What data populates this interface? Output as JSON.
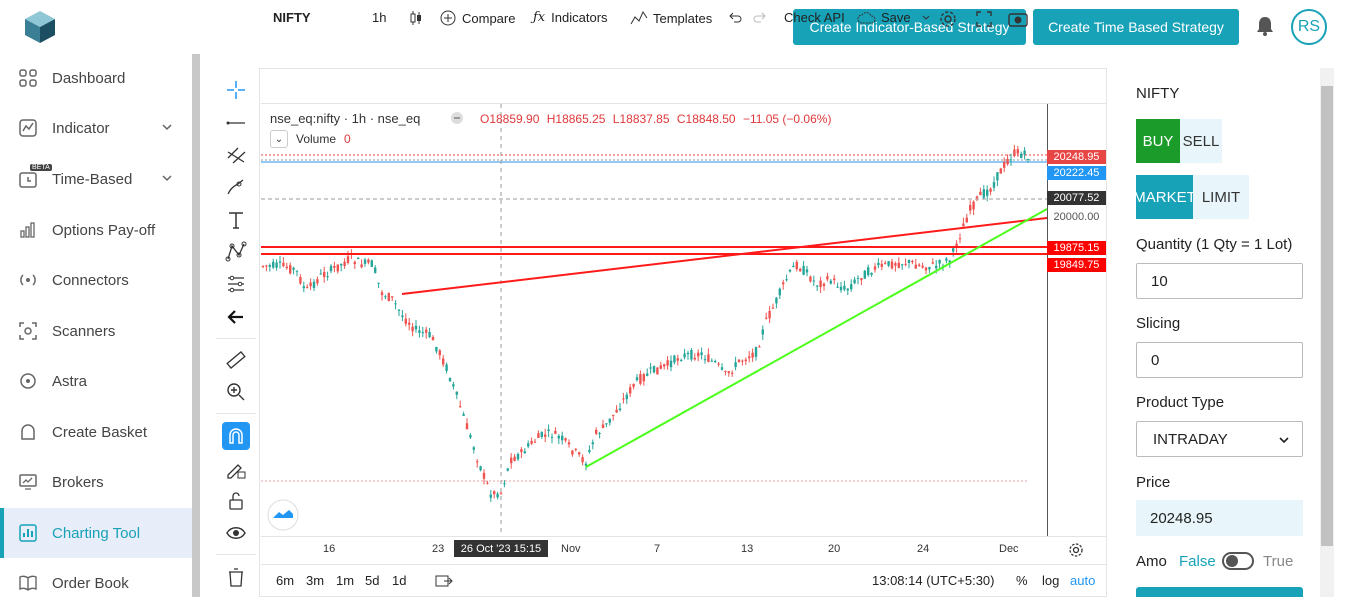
{
  "header": {
    "btn_indicator": "Create Indicator-Based Strategy",
    "btn_time": "Create Time Based Strategy",
    "avatar_initials": "RS",
    "accent_color": "#17a2b8"
  },
  "sidebar": {
    "items": [
      {
        "label": "Dashboard",
        "icon": "grid-icon"
      },
      {
        "label": "Indicator",
        "icon": "chart-line-icon"
      },
      {
        "label": "Time-Based",
        "icon": "clock-icon",
        "badge": "BETA"
      },
      {
        "label": "Options Pay-off",
        "icon": "bar-chart-icon"
      },
      {
        "label": "Connectors",
        "icon": "antenna-icon"
      },
      {
        "label": "Scanners",
        "icon": "scan-icon"
      },
      {
        "label": "Astra",
        "icon": "astra-icon"
      },
      {
        "label": "Create Basket",
        "icon": "basket-icon"
      },
      {
        "label": "Brokers",
        "icon": "monitor-icon"
      },
      {
        "label": "Charting Tool",
        "icon": "chart-icon"
      },
      {
        "label": "Order Book",
        "icon": "book-icon"
      }
    ]
  },
  "chart": {
    "toolbar": {
      "symbol": "NIFTY",
      "interval": "1h",
      "compare": "Compare",
      "indicators": "Indicators",
      "templates": "Templates",
      "check_api": "Check API",
      "save": "Save"
    },
    "legend": {
      "title": "nse_eq:nifty · 1h · nse_eq",
      "o": "O18859.90",
      "h": "H18865.25",
      "l": "L18837.85",
      "c": "C18848.50",
      "chg": "−11.05 (−0.06%)",
      "volume_label": "Volume",
      "volume_value": "0"
    },
    "price_labels": [
      {
        "text": "20248.95",
        "color": "#e84545"
      },
      {
        "text": "20222.45",
        "color": "#2196f3"
      },
      {
        "text": "20077.52",
        "color": "#333333"
      },
      {
        "text": "20000.00",
        "color": "none"
      },
      {
        "text": "19875.15",
        "color": "#ff0000"
      },
      {
        "text": "19849.75",
        "color": "#ff0000"
      }
    ],
    "time_labels": [
      "16",
      "23",
      "Nov",
      "7",
      "13",
      "20",
      "24",
      "Dec"
    ],
    "crosshair_time": "26 Oct '23   15:15",
    "bottom": {
      "ranges": [
        "6m",
        "3m",
        "1m",
        "5d",
        "1d"
      ],
      "clock": "13:08:14 (UTC+5:30)",
      "pct": "%",
      "log": "log",
      "auto": "auto"
    }
  },
  "order_panel": {
    "symbol": "NIFTY",
    "buy": "BUY",
    "sell": "SELL",
    "market": "MARKET",
    "limit": "LIMIT",
    "quantity_label": "Quantity (1 Qty = 1 Lot)",
    "quantity_value": "10",
    "slicing_label": "Slicing",
    "slicing_value": "0",
    "product_type_label": "Product Type",
    "product_type_value": "INTRADAY",
    "price_label": "Price",
    "price_value": "20248.95",
    "amo_label": "Amo",
    "amo_false": "False",
    "amo_true": "True"
  }
}
